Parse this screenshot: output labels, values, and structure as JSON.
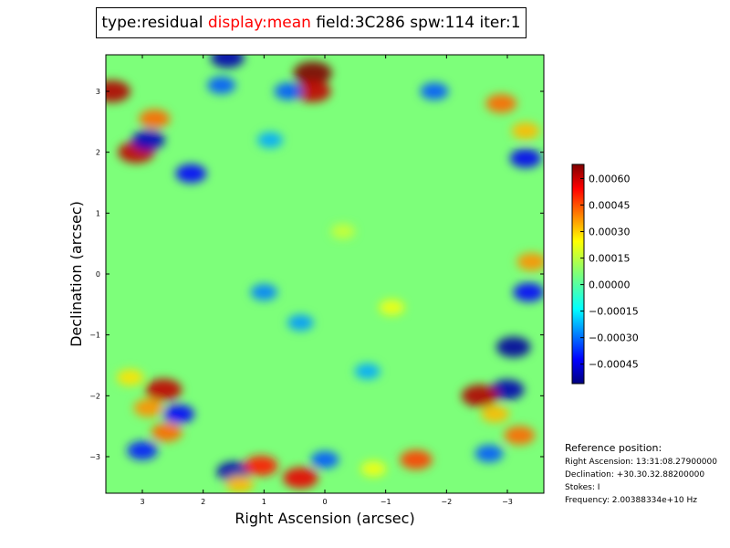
{
  "title": {
    "type": "type:residual",
    "display": "display:mean",
    "field": "field:3C286",
    "spw": "spw:114",
    "iter": "iter:1",
    "highlight_color": "#ff0000"
  },
  "chart_data": {
    "type": "heatmap",
    "xlabel": "Right Ascension (arcsec)",
    "ylabel": "Declination (arcsec)",
    "xlim": [
      3.6,
      -3.6
    ],
    "ylim": [
      -3.6,
      3.6
    ],
    "xticks": [
      3,
      2,
      1,
      0,
      -1,
      -2,
      -3
    ],
    "xtick_labels": [
      "3",
      "2",
      "1",
      "0",
      "−1",
      "−2",
      "−3"
    ],
    "yticks": [
      3,
      2,
      1,
      0,
      -1,
      -2,
      -3
    ],
    "ytick_labels": [
      "3",
      "2",
      "1",
      "0",
      "−1",
      "−2",
      "−3"
    ],
    "colormap": "jet",
    "colorbar": {
      "min": -0.00056,
      "max": 0.00068,
      "ticks": [
        0.0006,
        0.00045,
        0.0003,
        0.00015,
        0.0,
        -0.00015,
        -0.0003,
        -0.00045
      ],
      "tick_labels": [
        "0.00060",
        "0.00045",
        "0.00030",
        "0.00015",
        "0.00000",
        "−0.00015",
        "−0.00030",
        "−0.00045"
      ]
    },
    "features": [
      {
        "x": 0.2,
        "y": 3.3,
        "value": 0.00068
      },
      {
        "x": 0.2,
        "y": 3.0,
        "value": 0.0006
      },
      {
        "x": 3.5,
        "y": 3.0,
        "value": 0.00062
      },
      {
        "x": 3.1,
        "y": 2.0,
        "value": 0.0006
      },
      {
        "x": 2.8,
        "y": 2.55,
        "value": 0.0004
      },
      {
        "x": 2.9,
        "y": 2.2,
        "value": -0.00048
      },
      {
        "x": 2.2,
        "y": 1.65,
        "value": -0.0004
      },
      {
        "x": 1.6,
        "y": 3.55,
        "value": -0.0005
      },
      {
        "x": 1.7,
        "y": 3.1,
        "value": -0.0003
      },
      {
        "x": 0.6,
        "y": 3.0,
        "value": -0.0003
      },
      {
        "x": -2.9,
        "y": 2.8,
        "value": 0.0004
      },
      {
        "x": -3.3,
        "y": 2.35,
        "value": 0.0003
      },
      {
        "x": -3.3,
        "y": 1.9,
        "value": -0.00042
      },
      {
        "x": -3.4,
        "y": 0.2,
        "value": 0.00035
      },
      {
        "x": -3.35,
        "y": -0.3,
        "value": -0.0004
      },
      {
        "x": -3.1,
        "y": -1.2,
        "value": -0.00052
      },
      {
        "x": -3.0,
        "y": -1.9,
        "value": -0.0005
      },
      {
        "x": -2.55,
        "y": -2.0,
        "value": 0.00062
      },
      {
        "x": -2.8,
        "y": -2.3,
        "value": 0.0003
      },
      {
        "x": -3.2,
        "y": -2.65,
        "value": 0.0004
      },
      {
        "x": -2.7,
        "y": -2.95,
        "value": -0.0003
      },
      {
        "x": -1.1,
        "y": -0.55,
        "value": 0.0002
      },
      {
        "x": -1.5,
        "y": -3.05,
        "value": 0.00045
      },
      {
        "x": -0.8,
        "y": -3.2,
        "value": 0.0002
      },
      {
        "x": 2.65,
        "y": -1.9,
        "value": 0.0006
      },
      {
        "x": 2.9,
        "y": -2.2,
        "value": 0.00035
      },
      {
        "x": 2.6,
        "y": -2.6,
        "value": 0.0004
      },
      {
        "x": 3.2,
        "y": -1.7,
        "value": 0.00025
      },
      {
        "x": 3.0,
        "y": -2.9,
        "value": -0.00038
      },
      {
        "x": 2.4,
        "y": -2.3,
        "value": -0.0004
      },
      {
        "x": 1.5,
        "y": -3.25,
        "value": -0.0005
      },
      {
        "x": 1.05,
        "y": -3.15,
        "value": 0.0005
      },
      {
        "x": 0.4,
        "y": -3.35,
        "value": 0.00055
      },
      {
        "x": 1.4,
        "y": -3.45,
        "value": 0.0003
      },
      {
        "x": 0.0,
        "y": -3.05,
        "value": -0.0003
      },
      {
        "x": 1.0,
        "y": -0.3,
        "value": -0.00025
      },
      {
        "x": 0.4,
        "y": -0.8,
        "value": -0.00022
      },
      {
        "x": -0.7,
        "y": -1.6,
        "value": -0.0002
      },
      {
        "x": -1.8,
        "y": 3.0,
        "value": -0.0003
      },
      {
        "x": -0.3,
        "y": 0.7,
        "value": 0.00015
      },
      {
        "x": 0.9,
        "y": 2.2,
        "value": -0.0002
      }
    ],
    "reference": {
      "title": "Reference position:",
      "ra": "Right Ascension: 13:31:08.27900000",
      "dec": "Declination: +30.30.32.88200000",
      "stokes": "Stokes: I",
      "freq": "Frequency: 2.00388334e+10 Hz"
    }
  }
}
